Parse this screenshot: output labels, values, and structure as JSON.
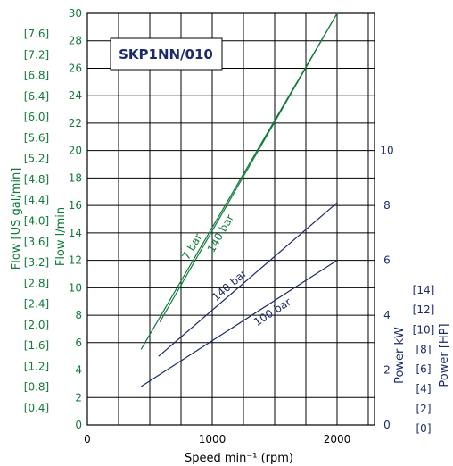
{
  "chart_data": {
    "type": "line",
    "title": "SKP1NN/010",
    "xlabel": "Speed min⁻¹ (rpm)",
    "xlim": [
      0,
      2300
    ],
    "x_ticks": [
      0,
      1000,
      2000
    ],
    "grid": true,
    "left_axis": {
      "label": "Flow l/min",
      "ylim": [
        0,
        30
      ],
      "ticks": [
        0,
        2,
        4,
        6,
        8,
        10,
        12,
        14,
        16,
        18,
        20,
        22,
        24,
        26,
        28,
        30
      ],
      "color": "#0f7a3a"
    },
    "left_axis_secondary": {
      "label": "Flow [US gal/min]",
      "ticks": [
        "[0.4]",
        "[0.8]",
        "[1.2]",
        "[1.6]",
        "[2.0]",
        "[2.4]",
        "[2.8]",
        "[3.2]",
        "[3.6]",
        "[4.0]",
        "[4.4]",
        "[4.8]",
        "[5.2]",
        "[5.6]",
        "[6.0]",
        "[6.4]",
        "[6.8]",
        "[7.2]",
        "[7.6]"
      ],
      "color": "#0f7a3a"
    },
    "right_axis": {
      "label": "Power kW",
      "ylim": [
        0,
        15
      ],
      "ticks": [
        0,
        2,
        4,
        6,
        8,
        10
      ],
      "color": "#1b2a6b"
    },
    "right_axis_secondary": {
      "label": "Power [HP]",
      "ticks": [
        "[0]",
        "[2]",
        "[4]",
        "[6]",
        "[8]",
        "[10]",
        "[12]",
        "[14]"
      ],
      "color": "#1b2a6b"
    },
    "series": [
      {
        "name": "7 bar",
        "axis": "flow",
        "color": "#0f7a3a",
        "x": [
          430,
          2000
        ],
        "y": [
          5.5,
          30
        ]
      },
      {
        "name": "140 bar",
        "axis": "flow",
        "color": "#0f7a3a",
        "x": [
          580,
          2000
        ],
        "y": [
          7.5,
          30
        ]
      },
      {
        "name": "140 bar",
        "axis": "power",
        "color": "#1b2a6b",
        "x": [
          570,
          2000
        ],
        "y": [
          2.5,
          8.1
        ]
      },
      {
        "name": "100 bar",
        "axis": "power",
        "color": "#1b2a6b",
        "x": [
          430,
          2000
        ],
        "y": [
          1.4,
          6.0
        ]
      }
    ]
  }
}
